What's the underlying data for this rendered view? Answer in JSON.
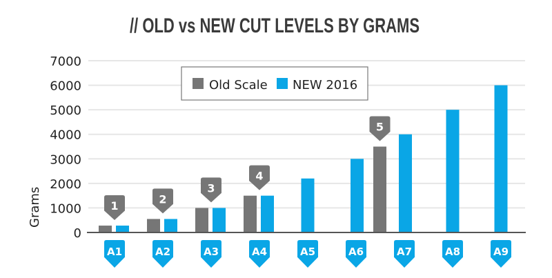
{
  "chart_data": {
    "type": "bar",
    "title": "// OLD vs NEW CUT LEVELS BY GRAMS",
    "ylabel": "Grams",
    "xlabel": "",
    "ylim": [
      0,
      7000
    ],
    "yticks": [
      "0",
      "1000",
      "2000",
      "3000",
      "4000",
      "5000",
      "6000",
      "7000"
    ],
    "grid": true,
    "legend_placement": "top-center",
    "categories": [
      "A1",
      "A2",
      "A3",
      "A4",
      "A5",
      "A6",
      "A7",
      "A8",
      "A9"
    ],
    "series": [
      {
        "name": "Old Scale",
        "color": "#767676",
        "points": [
          {
            "label": "1",
            "category": "A1",
            "value": 280
          },
          {
            "label": "2",
            "category": "A2",
            "value": 550
          },
          {
            "label": "3",
            "category": "A3",
            "value": 1000
          },
          {
            "label": "4",
            "category": "A4",
            "value": 1500
          },
          {
            "label": "5",
            "category": "A6",
            "value": 3500
          }
        ]
      },
      {
        "name": "NEW 2016",
        "color": "#0aa6e6",
        "values": [
          280,
          550,
          1000,
          1500,
          2200,
          3000,
          4000,
          5000,
          6000
        ]
      }
    ]
  }
}
